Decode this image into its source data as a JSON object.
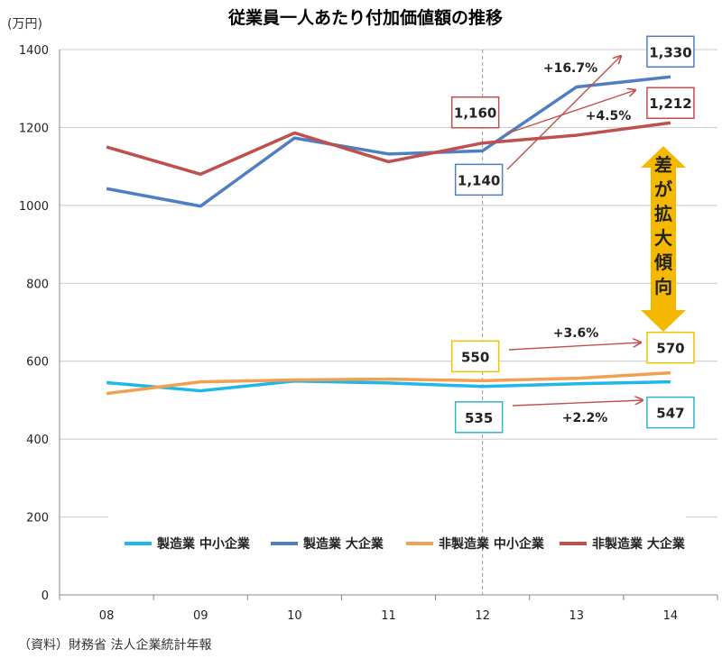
{
  "page": {
    "source": "（資料）財務省 法人企業統計年報"
  },
  "chart_data": {
    "type": "line",
    "title": "従業員一人あたり付加価値額の推移",
    "unit_label": "(万円)",
    "xlabel": "",
    "ylabel": "",
    "categories": [
      "08",
      "09",
      "10",
      "11",
      "12",
      "13",
      "14"
    ],
    "ylim": [
      0,
      1400
    ],
    "yticks": [
      0,
      200,
      400,
      600,
      800,
      1000,
      1200,
      1400
    ],
    "grid": "horizontal",
    "legend_position": "bottom-inside",
    "series": [
      {
        "name": "製造業 中小企業",
        "color": "#1FB6E8",
        "values": [
          545,
          524,
          549,
          544,
          535,
          542,
          547
        ]
      },
      {
        "name": "製造業 大企業",
        "color": "#4F7FC0",
        "values": [
          1043,
          998,
          1173,
          1132,
          1140,
          1304,
          1330
        ]
      },
      {
        "name": "非製造業 中小企業",
        "color": "#F0A050",
        "values": [
          517,
          547,
          552,
          554,
          550,
          556,
          570
        ]
      },
      {
        "name": "非製造業 大企業",
        "color": "#C0504D",
        "values": [
          1150,
          1080,
          1186,
          1112,
          1160,
          1180,
          1212
        ]
      }
    ],
    "annotations": {
      "value_boxes": [
        {
          "text": "1,330",
          "series": 1,
          "index": 6,
          "border": "#4F7FC0"
        },
        {
          "text": "1,212",
          "series": 3,
          "index": 6,
          "border": "#C0504D"
        },
        {
          "text": "1,160",
          "series": 3,
          "index": 4,
          "border": "#C0504D"
        },
        {
          "text": "1,140",
          "series": 1,
          "index": 4,
          "border": "#4F7FC0"
        },
        {
          "text": "550",
          "series": 2,
          "index": 4,
          "border": "#F2C200"
        },
        {
          "text": "570",
          "series": 2,
          "index": 6,
          "border": "#F2C200"
        },
        {
          "text": "535",
          "series": 0,
          "index": 4,
          "border": "#31B2D2"
        },
        {
          "text": "547",
          "series": 0,
          "index": 6,
          "border": "#31B2D2"
        }
      ],
      "growth_labels": [
        "+16.7%",
        "+4.5%",
        "+3.6%",
        "+2.2%"
      ],
      "reference_line_category": "12",
      "gap_label": "差が拡大傾向",
      "gap_arrow_color": "#F5B800"
    }
  }
}
